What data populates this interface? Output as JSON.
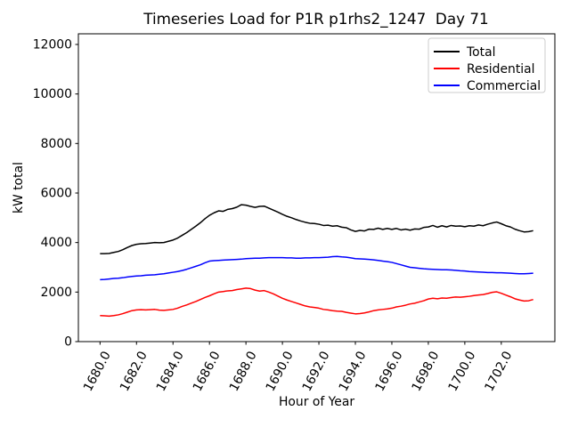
{
  "window": {
    "background_color": "#ffffff"
  },
  "chart_data": {
    "type": "line",
    "title": "Timeseries Load for P1R p1rhs2_1247  Day 71",
    "xlabel": "Hour of Year",
    "ylabel": "kW total",
    "xlim": [
      1678.8125,
      1704.9375
    ],
    "ylim": [
      0,
      12430
    ],
    "xticks": [
      1680.0,
      1682.0,
      1684.0,
      1686.0,
      1688.0,
      1690.0,
      1692.0,
      1694.0,
      1696.0,
      1698.0,
      1700.0,
      1702.0
    ],
    "xtick_labels": [
      "1680.0",
      "1682.0",
      "1684.0",
      "1686.0",
      "1688.0",
      "1690.0",
      "1692.0",
      "1694.0",
      "1696.0",
      "1698.0",
      "1700.0",
      "1702.0"
    ],
    "xtick_rotation_deg": 62,
    "yticks": [
      0,
      2000,
      4000,
      6000,
      8000,
      10000,
      12000
    ],
    "ytick_labels": [
      "0",
      "2000",
      "4000",
      "6000",
      "8000",
      "10000",
      "12000"
    ],
    "grid": false,
    "legend": {
      "position": "upper right",
      "entries": [
        {
          "label": "Total",
          "color": "#000000"
        },
        {
          "label": "Residential",
          "color": "#ff0000"
        },
        {
          "label": "Commercial",
          "color": "#0000ff"
        }
      ]
    },
    "x": [
      1680.0,
      1680.25,
      1680.5,
      1680.75,
      1681.0,
      1681.25,
      1681.5,
      1681.75,
      1682.0,
      1682.25,
      1682.5,
      1682.75,
      1683.0,
      1683.25,
      1683.5,
      1683.75,
      1684.0,
      1684.25,
      1684.5,
      1684.75,
      1685.0,
      1685.25,
      1685.5,
      1685.75,
      1686.0,
      1686.25,
      1686.5,
      1686.75,
      1687.0,
      1687.25,
      1687.5,
      1687.75,
      1688.0,
      1688.25,
      1688.5,
      1688.75,
      1689.0,
      1689.25,
      1689.5,
      1689.75,
      1690.0,
      1690.25,
      1690.5,
      1690.75,
      1691.0,
      1691.25,
      1691.5,
      1691.75,
      1692.0,
      1692.25,
      1692.5,
      1692.75,
      1693.0,
      1693.25,
      1693.5,
      1693.75,
      1694.0,
      1694.25,
      1694.5,
      1694.75,
      1695.0,
      1695.25,
      1695.5,
      1695.75,
      1696.0,
      1696.25,
      1696.5,
      1696.75,
      1697.0,
      1697.25,
      1697.5,
      1697.75,
      1698.0,
      1698.25,
      1698.5,
      1698.75,
      1699.0,
      1699.25,
      1699.5,
      1699.75,
      1700.0,
      1700.25,
      1700.5,
      1700.75,
      1701.0,
      1701.25,
      1701.5,
      1701.75,
      1702.0,
      1702.25,
      1702.5,
      1702.75,
      1703.0,
      1703.25,
      1703.5,
      1703.75
    ],
    "series": [
      {
        "name": "Total",
        "color": "#000000",
        "values": [
          3550,
          3550,
          3560,
          3600,
          3640,
          3710,
          3800,
          3880,
          3930,
          3950,
          3960,
          3980,
          4000,
          3990,
          4000,
          4050,
          4100,
          4180,
          4290,
          4400,
          4530,
          4660,
          4800,
          4960,
          5100,
          5200,
          5280,
          5260,
          5340,
          5370,
          5430,
          5530,
          5510,
          5460,
          5420,
          5460,
          5470,
          5390,
          5310,
          5230,
          5140,
          5060,
          5000,
          4930,
          4870,
          4820,
          4780,
          4770,
          4740,
          4690,
          4700,
          4660,
          4680,
          4620,
          4600,
          4510,
          4450,
          4490,
          4470,
          4540,
          4530,
          4580,
          4530,
          4570,
          4530,
          4570,
          4510,
          4540,
          4500,
          4550,
          4540,
          4610,
          4630,
          4690,
          4620,
          4680,
          4630,
          4690,
          4660,
          4670,
          4640,
          4680,
          4660,
          4710,
          4680,
          4740,
          4790,
          4830,
          4760,
          4680,
          4630,
          4540,
          4480,
          4430,
          4440,
          4480
        ]
      },
      {
        "name": "Residential",
        "color": "#ff0000",
        "values": [
          1050,
          1040,
          1030,
          1050,
          1080,
          1130,
          1190,
          1250,
          1280,
          1290,
          1280,
          1290,
          1300,
          1270,
          1260,
          1280,
          1300,
          1350,
          1420,
          1480,
          1550,
          1620,
          1700,
          1780,
          1850,
          1930,
          2000,
          2020,
          2050,
          2060,
          2100,
          2130,
          2160,
          2140,
          2080,
          2040,
          2060,
          2000,
          1930,
          1840,
          1750,
          1680,
          1620,
          1560,
          1500,
          1440,
          1400,
          1380,
          1350,
          1300,
          1280,
          1250,
          1230,
          1220,
          1180,
          1150,
          1120,
          1130,
          1160,
          1200,
          1250,
          1280,
          1300,
          1320,
          1350,
          1400,
          1430,
          1470,
          1520,
          1550,
          1600,
          1650,
          1720,
          1750,
          1730,
          1760,
          1750,
          1780,
          1800,
          1790,
          1810,
          1830,
          1860,
          1880,
          1900,
          1940,
          1990,
          2010,
          1950,
          1880,
          1810,
          1730,
          1680,
          1640,
          1650,
          1700
        ]
      },
      {
        "name": "Commercial",
        "color": "#0000ff",
        "values": [
          2500,
          2510,
          2530,
          2550,
          2560,
          2580,
          2610,
          2630,
          2650,
          2660,
          2680,
          2690,
          2700,
          2720,
          2740,
          2770,
          2800,
          2830,
          2870,
          2920,
          2980,
          3040,
          3100,
          3180,
          3250,
          3270,
          3280,
          3290,
          3300,
          3310,
          3320,
          3330,
          3350,
          3360,
          3370,
          3370,
          3380,
          3390,
          3390,
          3390,
          3390,
          3380,
          3380,
          3370,
          3370,
          3380,
          3380,
          3390,
          3390,
          3400,
          3410,
          3430,
          3440,
          3420,
          3410,
          3380,
          3350,
          3340,
          3330,
          3320,
          3300,
          3280,
          3250,
          3230,
          3200,
          3150,
          3100,
          3050,
          3000,
          2980,
          2960,
          2940,
          2930,
          2920,
          2910,
          2900,
          2900,
          2890,
          2880,
          2860,
          2850,
          2830,
          2820,
          2810,
          2800,
          2790,
          2790,
          2780,
          2780,
          2770,
          2760,
          2750,
          2740,
          2740,
          2750,
          2760
        ]
      }
    ]
  }
}
